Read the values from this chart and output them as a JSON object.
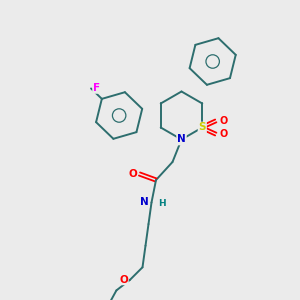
{
  "background_color": "#ebebeb",
  "bond_color": "#2d6e6e",
  "figsize": [
    3.0,
    3.0
  ],
  "dpi": 100,
  "atom_colors": {
    "F": "#ff00ff",
    "N_ring": "#0000cc",
    "N_amide": "#0000cc",
    "S": "#cccc00",
    "O": "#ff0000",
    "H": "#008080"
  }
}
